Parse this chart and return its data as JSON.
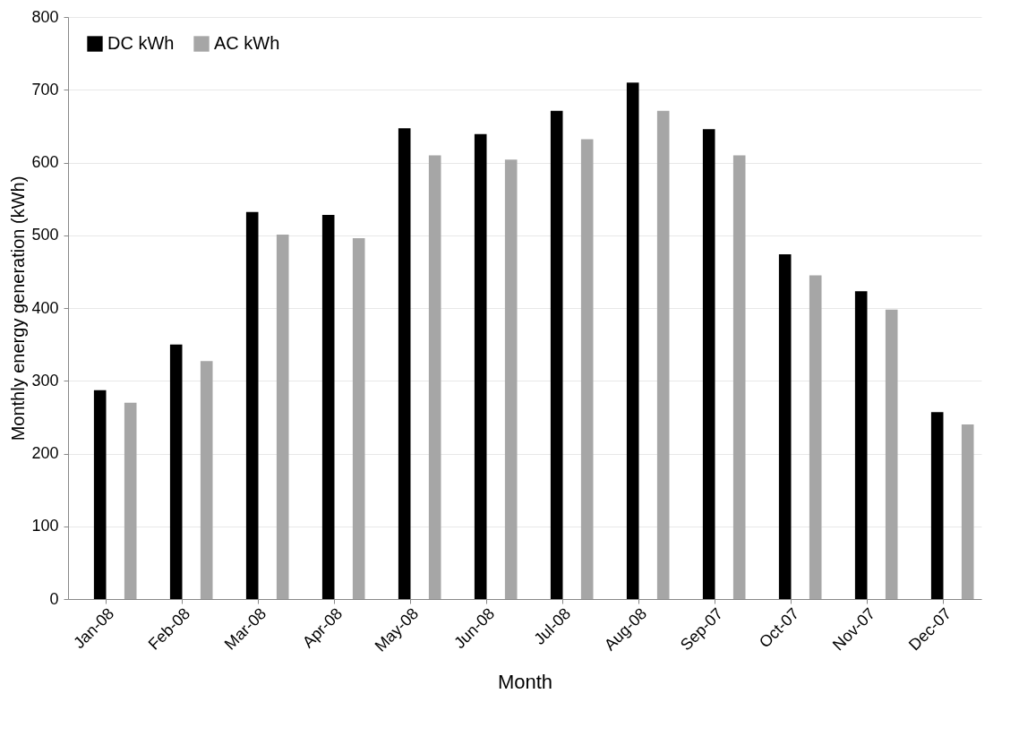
{
  "chart_data": {
    "type": "bar",
    "xlabel": "Month",
    "ylabel": "Monthly energy generation (kWh)",
    "categories": [
      "Jan-08",
      "Feb-08",
      "Mar-08",
      "Apr-08",
      "May-08",
      "Jun-08",
      "Jul-08",
      "Aug-08",
      "Sep-07",
      "Oct-07",
      "Nov-07",
      "Dec-07"
    ],
    "series": [
      {
        "name": "DC kWh",
        "color": "#000000",
        "values": [
          287,
          350,
          532,
          528,
          647,
          639,
          671,
          710,
          646,
          474,
          423,
          257
        ]
      },
      {
        "name": "AC kWh",
        "color": "#a6a6a6",
        "values": [
          270,
          327,
          501,
          496,
          610,
          604,
          632,
          671,
          610,
          445,
          398,
          240
        ]
      }
    ],
    "ylim": [
      0,
      800
    ],
    "yticks": [
      0,
      100,
      200,
      300,
      400,
      500,
      600,
      700,
      800
    ],
    "grid": "y",
    "legend": "top left"
  }
}
